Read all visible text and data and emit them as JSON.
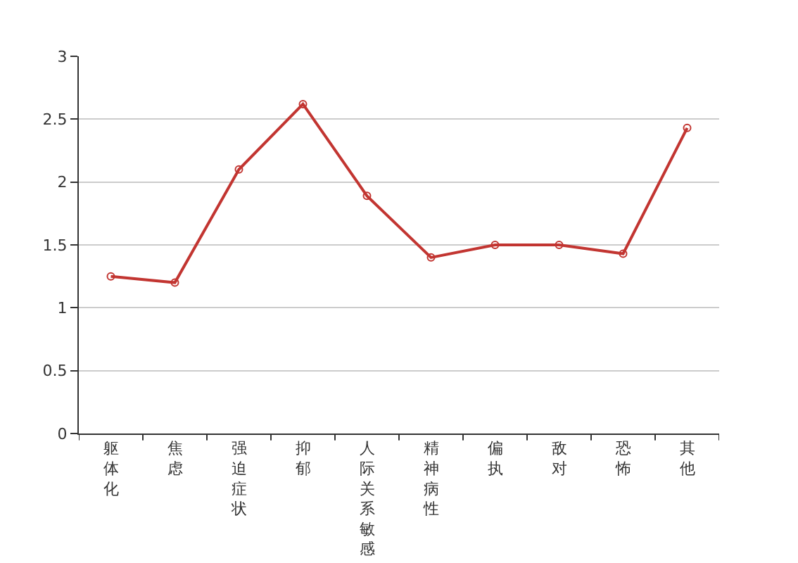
{
  "chart_data": {
    "type": "line",
    "categories": [
      "躯体化",
      "焦虑",
      "强迫症状",
      "抑郁",
      "人际关系敏感",
      "精神病性",
      "偏执",
      "敌对",
      "恐怖",
      "其他"
    ],
    "series": [
      {
        "color": "#c23531",
        "values": [
          1.25,
          1.2,
          2.1,
          2.62,
          1.89,
          1.4,
          1.5,
          1.5,
          1.43,
          2.43
        ]
      }
    ],
    "ylim": [
      0,
      3
    ],
    "yticks": [
      0,
      0.5,
      1,
      1.5,
      2,
      2.5,
      3
    ],
    "grid": "y",
    "marker": "circle",
    "line_style": "solid",
    "legend": false
  }
}
